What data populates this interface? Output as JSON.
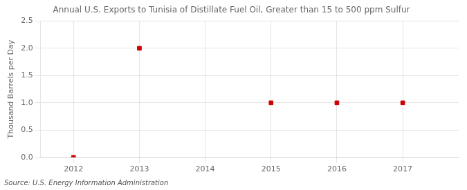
{
  "chart_data": {
    "type": "scatter",
    "title": "Annual U.S. Exports to Tunisia of Distillate Fuel Oil, Greater than 15 to 500 ppm Sulfur",
    "y_label": "Thousand Barrels per Day",
    "source": "Source: U.S. Energy Information Administration",
    "x": [
      2012,
      2013,
      2015,
      2016,
      2017
    ],
    "values": [
      0.0,
      2.0,
      1.0,
      1.0,
      1.0
    ],
    "color": "#cc0000",
    "marker": "square",
    "xlim": [
      2011.5,
      2017.85
    ],
    "xticks": [
      2012,
      2013,
      2014,
      2015,
      2016,
      2017
    ],
    "ylim": [
      0.0,
      2.5
    ],
    "yticks": [
      {
        "value": 0,
        "label": "0.0"
      },
      0.5,
      {
        "value": 1,
        "label": "1.0"
      },
      1.5,
      {
        "value": 2,
        "label": "2.0"
      },
      2.5
    ],
    "grid": true
  }
}
